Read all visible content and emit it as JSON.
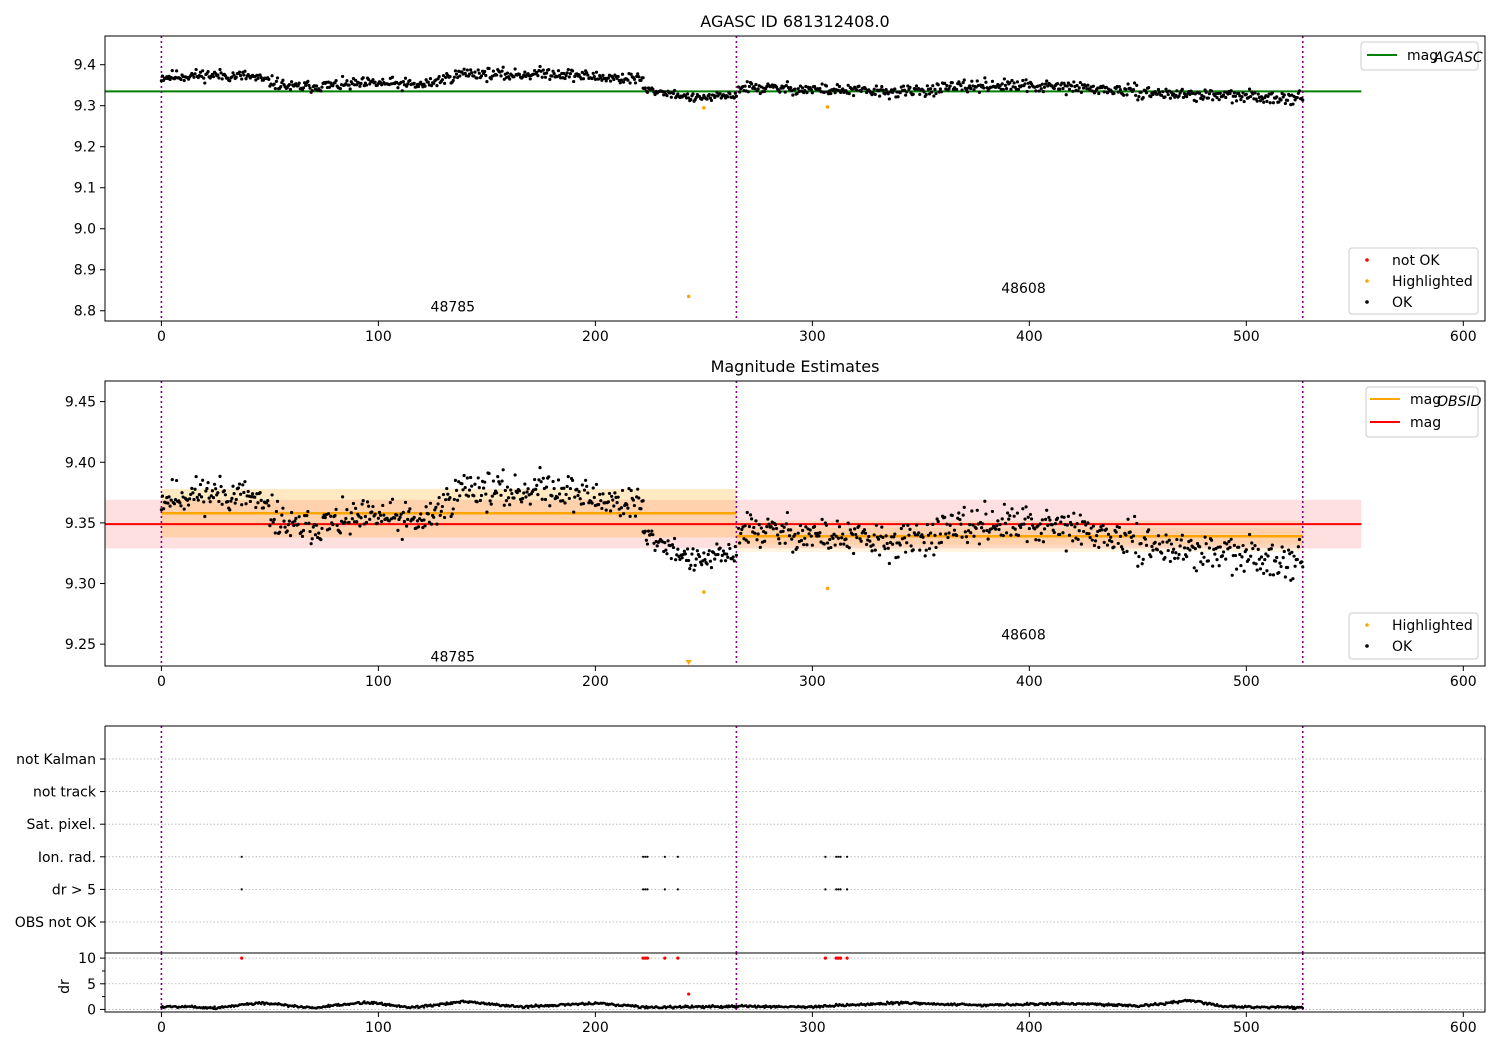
{
  "chart_data": [
    {
      "type": "scatter",
      "title": "AGASC ID 681312408.0",
      "xlabel": "",
      "ylabel": "",
      "xlim": [
        -26,
        610
      ],
      "ylim": [
        8.775,
        9.47
      ],
      "xticks": [
        0,
        100,
        200,
        300,
        400,
        500,
        600
      ],
      "yticks": [
        8.8,
        8.9,
        9.0,
        9.1,
        9.2,
        9.3,
        9.4
      ],
      "ytick_labels": [
        "8.8",
        "8.9",
        "9.0",
        "9.1",
        "9.2",
        "9.3",
        "9.4"
      ],
      "obs_boundaries": [
        0,
        265,
        526
      ],
      "obsid_labels": [
        {
          "text": "48785",
          "x": 132,
          "y": 8.81
        },
        {
          "text": "48608",
          "x": 395,
          "y": 8.855
        }
      ],
      "hlines": [
        {
          "name": "mag_AGASC",
          "value": 9.335,
          "x_range": [
            -26,
            553
          ],
          "color": "#008000"
        }
      ],
      "legend_top": [
        {
          "label": "mag",
          "sub": "AGASC",
          "color": "#008000",
          "kind": "line"
        }
      ],
      "legend_bottom": [
        {
          "label": "not OK",
          "color": "#ff0000",
          "kind": "dot"
        },
        {
          "label": "Highlighted",
          "color": "#ffa500",
          "kind": "dot"
        },
        {
          "label": "OK",
          "color": "#000000",
          "kind": "dot"
        }
      ],
      "highlighted_points": [
        [
          243,
          8.835
        ],
        [
          250,
          9.295
        ],
        [
          307,
          9.297
        ]
      ],
      "ok_model": {
        "segments": [
          {
            "x_range": [
              0,
              222
            ],
            "knots": [
              [
                0,
                9.37
              ],
              [
                20,
                9.375
              ],
              [
                40,
                9.372
              ],
              [
                60,
                9.345
              ],
              [
                80,
                9.35
              ],
              [
                100,
                9.355
              ],
              [
                120,
                9.35
              ],
              [
                140,
                9.38
              ],
              [
                160,
                9.375
              ],
              [
                180,
                9.38
              ],
              [
                200,
                9.37
              ],
              [
                222,
                9.365
              ]
            ],
            "noise": 0.012
          },
          {
            "x_range": [
              222,
              265
            ],
            "knots": [
              [
                222,
                9.34
              ],
              [
                235,
                9.33
              ],
              [
                245,
                9.318
              ],
              [
                265,
                9.325
              ]
            ],
            "noise": 0.008
          },
          {
            "x_range": [
              266,
              526
            ],
            "knots": [
              [
                266,
                9.345
              ],
              [
                300,
                9.34
              ],
              [
                340,
                9.333
              ],
              [
                380,
                9.35
              ],
              [
                420,
                9.345
              ],
              [
                460,
                9.33
              ],
              [
                500,
                9.322
              ],
              [
                526,
                9.32
              ]
            ],
            "noise": 0.012
          }
        ],
        "step": 0.5,
        "seed": 11
      }
    },
    {
      "type": "scatter",
      "title": "Magnitude Estimates",
      "xlabel": "",
      "ylabel": "",
      "xlim": [
        -26,
        610
      ],
      "ylim": [
        9.232,
        9.467
      ],
      "xticks": [
        0,
        100,
        200,
        300,
        400,
        500,
        600
      ],
      "yticks": [
        9.25,
        9.3,
        9.35,
        9.4,
        9.45
      ],
      "ytick_labels": [
        "9.25",
        "9.30",
        "9.35",
        "9.40",
        "9.45"
      ],
      "obs_boundaries": [
        0,
        265,
        526
      ],
      "obsid_labels": [
        {
          "text": "48785",
          "x": 132,
          "y": 9.24
        },
        {
          "text": "48608",
          "x": 395,
          "y": 9.258
        }
      ],
      "mag": {
        "value": 9.349,
        "band": [
          9.329,
          9.369
        ],
        "x_range": [
          -26,
          553
        ],
        "color": "#ff0000"
      },
      "mag_obsid": [
        {
          "x_range": [
            0,
            265
          ],
          "value": 9.358,
          "band_inner": [
            9.338,
            9.378
          ],
          "band_outer": [
            9.338,
            9.378
          ]
        },
        {
          "x_range": [
            265,
            526
          ],
          "value": 9.339,
          "band_inner": [
            9.332,
            9.346
          ],
          "band_outer": [
            9.326,
            9.352
          ]
        }
      ],
      "legend_top": [
        {
          "label": "mag",
          "sub": "OBSID",
          "color": "#ffa500",
          "kind": "line"
        },
        {
          "label": "mag",
          "sub": "",
          "color": "#ff0000",
          "kind": "line"
        }
      ],
      "legend_bottom": [
        {
          "label": "Highlighted",
          "color": "#ffa500",
          "kind": "dot"
        },
        {
          "label": "OK",
          "color": "#000000",
          "kind": "dot"
        }
      ],
      "highlighted_points": [
        [
          250,
          9.293
        ],
        [
          307,
          9.296
        ]
      ],
      "highlighted_offscale": [
        [
          243,
          9.234
        ]
      ],
      "ok_model": {
        "segments": [
          {
            "x_range": [
              0,
              222
            ],
            "knots": [
              [
                0,
                9.37
              ],
              [
                20,
                9.375
              ],
              [
                40,
                9.372
              ],
              [
                60,
                9.345
              ],
              [
                80,
                9.35
              ],
              [
                100,
                9.355
              ],
              [
                120,
                9.35
              ],
              [
                140,
                9.38
              ],
              [
                160,
                9.375
              ],
              [
                180,
                9.38
              ],
              [
                200,
                9.37
              ],
              [
                222,
                9.365
              ]
            ],
            "noise": 0.012
          },
          {
            "x_range": [
              222,
              265
            ],
            "knots": [
              [
                222,
                9.34
              ],
              [
                235,
                9.33
              ],
              [
                245,
                9.318
              ],
              [
                265,
                9.325
              ]
            ],
            "noise": 0.008
          },
          {
            "x_range": [
              266,
              526
            ],
            "knots": [
              [
                266,
                9.345
              ],
              [
                300,
                9.34
              ],
              [
                340,
                9.333
              ],
              [
                380,
                9.35
              ],
              [
                420,
                9.345
              ],
              [
                460,
                9.33
              ],
              [
                500,
                9.322
              ],
              [
                526,
                9.32
              ]
            ],
            "noise": 0.012
          }
        ],
        "step": 0.5,
        "seed": 11
      }
    },
    {
      "type": "scatter",
      "title": "",
      "xlabel": "",
      "ylabel": "",
      "xlim": [
        -26,
        610
      ],
      "xticks": [
        0,
        100,
        200,
        300,
        400,
        500,
        600
      ],
      "obs_boundaries": [
        0,
        265,
        526
      ],
      "flag_categories": [
        "not Kalman",
        "not track",
        "Sat. pixel.",
        "Ion. rad.",
        "dr > 5",
        "OBS not OK"
      ],
      "flag_points": [
        {
          "category": "Ion. rad.",
          "x": [
            37,
            222,
            223,
            224,
            232,
            238,
            306,
            311,
            312,
            313,
            316
          ]
        },
        {
          "category": "dr > 5",
          "x": [
            37,
            222,
            223,
            224,
            232,
            238,
            306,
            311,
            312,
            313,
            316
          ]
        }
      ]
    },
    {
      "type": "scatter",
      "title": "",
      "xlabel": "",
      "ylabel": "dr",
      "xlim": [
        -26,
        610
      ],
      "ylim": [
        -0.5,
        11
      ],
      "xticks": [
        0,
        100,
        200,
        300,
        400,
        500,
        600
      ],
      "yticks": [
        0,
        5,
        10
      ],
      "ytick_labels": [
        "0",
        "5",
        "10"
      ],
      "obs_boundaries": [
        0,
        265,
        526
      ],
      "not_ok_points": [
        [
          37,
          10
        ],
        [
          222,
          10
        ],
        [
          223,
          10
        ],
        [
          224,
          10
        ],
        [
          232,
          10
        ],
        [
          238,
          10
        ],
        [
          306,
          10
        ],
        [
          311,
          10
        ],
        [
          312,
          10
        ],
        [
          313,
          10
        ],
        [
          316,
          10
        ],
        [
          243,
          3
        ]
      ],
      "ok_model": {
        "segments": [
          {
            "x_range": [
              0,
              526
            ],
            "knots": [
              [
                0,
                0.5
              ],
              [
                10,
                0.6
              ],
              [
                25,
                0.3
              ],
              [
                45,
                1.3
              ],
              [
                70,
                0.3
              ],
              [
                95,
                1.4
              ],
              [
                115,
                0.4
              ],
              [
                140,
                1.5
              ],
              [
                165,
                0.5
              ],
              [
                200,
                1.2
              ],
              [
                225,
                0.4
              ],
              [
                265,
                0.6
              ],
              [
                300,
                0.5
              ],
              [
                340,
                1.3
              ],
              [
                380,
                0.8
              ],
              [
                420,
                1.2
              ],
              [
                450,
                0.7
              ],
              [
                475,
                1.8
              ],
              [
                490,
                0.5
              ],
              [
                526,
                0.4
              ]
            ],
            "noise": 0.2
          }
        ],
        "step": 0.5,
        "seed": 5
      }
    }
  ]
}
